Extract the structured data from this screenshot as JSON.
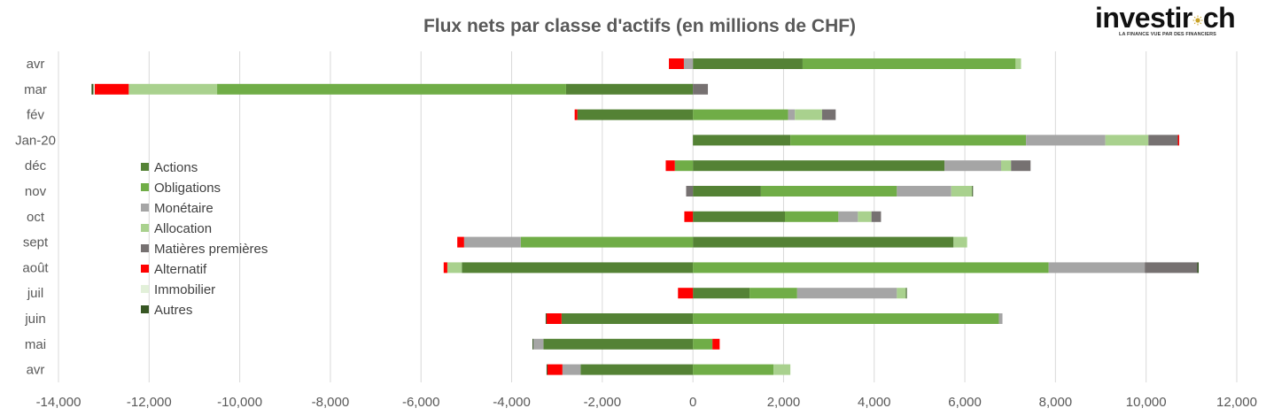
{
  "logo": {
    "text_left": "investir",
    "text_right": "ch",
    "tagline": "LA FINANCE VUE PAR DES FINANCIERS"
  },
  "chart_data": {
    "type": "bar",
    "orientation": "horizontal",
    "stacked": true,
    "title": "Flux nets par classe d'actifs (en millions de CHF)",
    "xlabel": "",
    "ylabel": "",
    "xlim": [
      -14000,
      12000
    ],
    "x_ticks": [
      "-14,000",
      "-12,000",
      "-10,000",
      "-8,000",
      "-6,000",
      "-4,000",
      "-2,000",
      "0",
      "2,000",
      "4,000",
      "6,000",
      "8,000",
      "10,000",
      "12,000"
    ],
    "grid": "vertical",
    "legend_position": "left-inside",
    "categories": [
      "avr",
      "mar",
      "fév",
      "Jan-20",
      "déc",
      "nov",
      "oct",
      "sept",
      "août",
      "juil",
      "juin",
      "mai",
      "avr"
    ],
    "series": [
      {
        "name": "Actions",
        "color": "#548235",
        "values": [
          2420,
          -2800,
          -2550,
          2150,
          5550,
          1500,
          2030,
          5750,
          -5100,
          1250,
          -2900,
          -3300,
          -2480
        ]
      },
      {
        "name": "Obligations",
        "color": "#70AD47",
        "values": [
          4700,
          -7700,
          2100,
          5200,
          -400,
          3000,
          1180,
          -3800,
          7850,
          1050,
          6750,
          430,
          1780
        ]
      },
      {
        "name": "Monétaire",
        "color": "#A5A5A5",
        "values": [
          -200,
          0,
          150,
          1750,
          1250,
          1200,
          430,
          -1250,
          2120,
          2200,
          80,
          -220,
          -400
        ]
      },
      {
        "name": "Allocation",
        "color": "#A9D18E",
        "values": [
          120,
          -1950,
          600,
          950,
          220,
          460,
          300,
          300,
          -320,
          200,
          0,
          0,
          370
        ]
      },
      {
        "name": "Matières premières",
        "color": "#767171",
        "values": [
          0,
          330,
          300,
          650,
          430,
          -150,
          210,
          0,
          1160,
          0,
          0,
          0,
          0
        ]
      },
      {
        "name": "Alternatif",
        "color": "#FF0000",
        "values": [
          -330,
          -750,
          -60,
          30,
          -200,
          0,
          -190,
          -150,
          -80,
          -330,
          -330,
          160,
          -330
        ]
      },
      {
        "name": "Immobilier",
        "color": "#E2F0D9",
        "values": [
          0,
          -30,
          0,
          0,
          0,
          0,
          0,
          0,
          0,
          0,
          0,
          0,
          0
        ]
      },
      {
        "name": "Autres",
        "color": "#375623",
        "values": [
          0,
          -40,
          0,
          0,
          0,
          20,
          0,
          0,
          30,
          20,
          -20,
          -20,
          -20
        ]
      }
    ]
  }
}
